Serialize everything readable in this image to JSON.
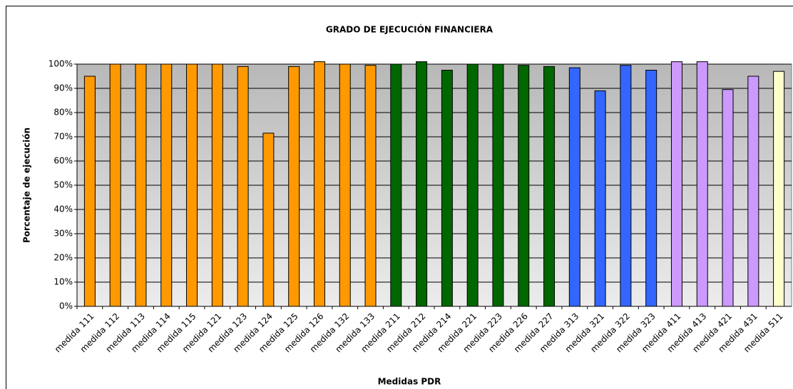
{
  "chart_data": {
    "type": "bar",
    "title": "GRADO DE EJECUCIÓN FINANCIERA",
    "x_label": "Medidas PDR",
    "y_label": "Porcentaje de ejecución",
    "categories": [
      "medida 111",
      "medida 112",
      "medida 113",
      "medida 114",
      "medida 115",
      "medida 121",
      "medida 123",
      "medida 124",
      "medida 125",
      "medida 126",
      "medida 132",
      "medida 133",
      "medida 211",
      "medida 212",
      "medida 214",
      "medida 221",
      "medida 223",
      "medida 226",
      "medida 227",
      "medida 313",
      "medida 321",
      "medida 322",
      "medida 323",
      "medida 411",
      "medida 413",
      "medida 421",
      "medida 431",
      "medida 511"
    ],
    "values": [
      95,
      100,
      100,
      100,
      100,
      100,
      99,
      71.5,
      99,
      101,
      100,
      99.5,
      100,
      101,
      97.5,
      100,
      100,
      99.5,
      99,
      98.5,
      89,
      99.5,
      97.5,
      101,
      101,
      89.5,
      95,
      97
    ],
    "colors": [
      "#FF9900",
      "#FF9900",
      "#FF9900",
      "#FF9900",
      "#FF9900",
      "#FF9900",
      "#FF9900",
      "#FF9900",
      "#FF9900",
      "#FF9900",
      "#FF9900",
      "#FF9900",
      "#006600",
      "#006600",
      "#006600",
      "#006600",
      "#006600",
      "#006600",
      "#006600",
      "#3366FF",
      "#3366FF",
      "#3366FF",
      "#3366FF",
      "#CC99FF",
      "#CC99FF",
      "#CC99FF",
      "#CC99FF",
      "#FFFFCC"
    ],
    "ylim": [
      0,
      100
    ],
    "yticks": [
      {
        "value": 0,
        "label": "0%"
      },
      {
        "value": 10,
        "label": "10%"
      },
      {
        "value": 20,
        "label": "20%"
      },
      {
        "value": 30,
        "label": "30%"
      },
      {
        "value": 40,
        "label": "40%"
      },
      {
        "value": 50,
        "label": "50%"
      },
      {
        "value": 60,
        "label": "60%"
      },
      {
        "value": 70,
        "label": "70%"
      },
      {
        "value": 80,
        "label": "80%"
      },
      {
        "value": 90,
        "label": "90%"
      },
      {
        "value": 100,
        "label": "100%"
      }
    ],
    "grid": true
  }
}
